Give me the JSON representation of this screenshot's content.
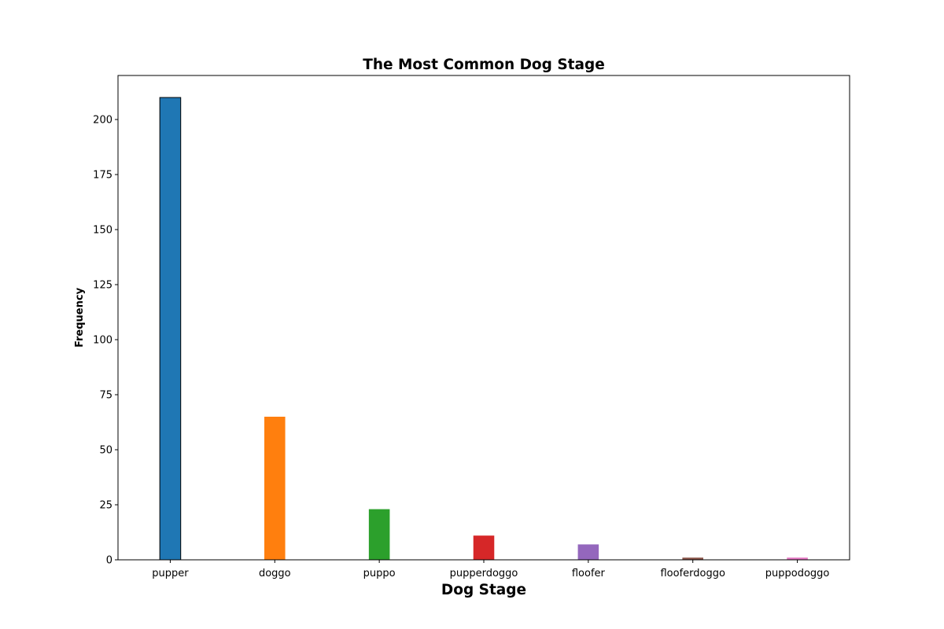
{
  "chart_data": {
    "type": "bar",
    "title": "The Most Common Dog Stage",
    "xlabel": "Dog Stage",
    "ylabel": "Frequency",
    "categories": [
      "pupper",
      "doggo",
      "puppo",
      "pupperdoggo",
      "floofer",
      "flooferdoggo",
      "puppodoggo"
    ],
    "values": [
      210,
      65,
      23,
      11,
      7,
      1,
      1
    ],
    "colors": [
      "#1f77b4",
      "#ff7f0e",
      "#2ca02c",
      "#d62728",
      "#9467bd",
      "#8c564b",
      "#e377c2"
    ],
    "highlighted_bar_outline": "#000000",
    "ylim": [
      0,
      220
    ],
    "yticks": [
      0,
      25,
      50,
      75,
      100,
      125,
      150,
      175,
      200
    ],
    "grid": false,
    "legend": "none"
  }
}
